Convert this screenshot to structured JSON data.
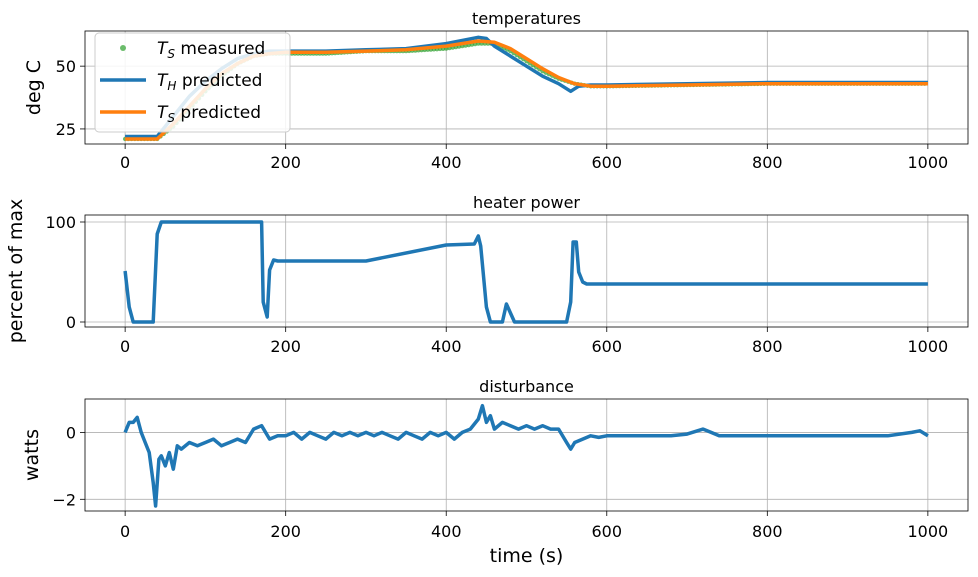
{
  "chart_data": [
    {
      "type": "line",
      "title": "temperatures",
      "ylabel": "deg C",
      "xlabel": "",
      "xlim": [
        -50,
        1050
      ],
      "ylim": [
        19,
        64
      ],
      "xticks": [
        0,
        200,
        400,
        600,
        800,
        1000
      ],
      "yticks": [
        25,
        50
      ],
      "xtick_labels": [
        "0",
        "200",
        "400",
        "600",
        "800",
        "1000"
      ],
      "ytick_labels": [
        "25",
        "50"
      ],
      "grid": true,
      "legend": "upper-left",
      "legend_entries": [
        {
          "label_main": "T",
          "label_sub": "S",
          "label_rest": " measured",
          "color": "#2ca02c",
          "marker": "dot"
        },
        {
          "label_main": "T",
          "label_sub": "H",
          "label_rest": " predicted",
          "color": "#1f77b4",
          "marker": "line"
        },
        {
          "label_main": "T",
          "label_sub": "S",
          "label_rest": " predicted",
          "color": "#ff7f0e",
          "marker": "line"
        }
      ],
      "series": [
        {
          "color": "#2ca02c",
          "kind": "scatter",
          "x": [
            0,
            20,
            40,
            60,
            80,
            100,
            120,
            140,
            160,
            180,
            200,
            250,
            300,
            350,
            400,
            440,
            460,
            480,
            500,
            520,
            540,
            560,
            580,
            600,
            700,
            800,
            900,
            1000
          ],
          "y": [
            21,
            21,
            21,
            26,
            33,
            40,
            46,
            51,
            54,
            55,
            55,
            55,
            56,
            56,
            57,
            59,
            59,
            56,
            52,
            48,
            45,
            43,
            42,
            42,
            42.5,
            43,
            43,
            43
          ]
        },
        {
          "color": "#1f77b4",
          "kind": "line",
          "x": [
            0,
            20,
            40,
            60,
            80,
            100,
            120,
            140,
            160,
            180,
            200,
            250,
            300,
            350,
            400,
            440,
            450,
            460,
            480,
            500,
            520,
            540,
            555,
            565,
            580,
            600,
            700,
            800,
            900,
            1000
          ],
          "y": [
            22,
            22,
            22,
            30,
            38,
            44,
            49,
            53,
            55,
            56,
            56,
            56,
            56.5,
            57,
            59,
            61.5,
            61,
            58,
            54,
            50,
            46,
            43,
            40,
            42,
            42.5,
            42.5,
            43,
            43.5,
            43.5,
            43.5
          ]
        },
        {
          "color": "#ff7f0e",
          "kind": "line",
          "x": [
            0,
            20,
            40,
            60,
            80,
            100,
            120,
            140,
            160,
            180,
            200,
            250,
            300,
            350,
            400,
            440,
            460,
            480,
            500,
            520,
            540,
            560,
            580,
            600,
            700,
            800,
            900,
            1000
          ],
          "y": [
            21,
            21,
            21,
            27,
            34,
            41,
            47,
            51,
            54,
            55,
            55.5,
            55.5,
            56,
            56.5,
            58,
            60,
            59.5,
            57,
            53,
            49,
            45.5,
            43,
            42,
            42,
            42.5,
            43,
            43,
            43
          ]
        }
      ]
    },
    {
      "type": "line",
      "title": "heater power",
      "ylabel": "percent of max",
      "xlabel": "",
      "xlim": [
        -50,
        1050
      ],
      "ylim": [
        -5,
        107
      ],
      "xticks": [
        0,
        200,
        400,
        600,
        800,
        1000
      ],
      "yticks": [
        0,
        100
      ],
      "xtick_labels": [
        "0",
        "200",
        "400",
        "600",
        "800",
        "1000"
      ],
      "ytick_labels": [
        "0",
        "100"
      ],
      "grid": true,
      "series": [
        {
          "color": "#1f77b4",
          "x": [
            0,
            5,
            10,
            35,
            40,
            45,
            170,
            172,
            177,
            180,
            185,
            190,
            300,
            400,
            435,
            440,
            443,
            450,
            455,
            470,
            475,
            485,
            550,
            555,
            558,
            562,
            565,
            570,
            575,
            1000
          ],
          "y": [
            51,
            15,
            0,
            0,
            88,
            100,
            100,
            20,
            5,
            52,
            62,
            61,
            61,
            77,
            78,
            86,
            76,
            15,
            0,
            0,
            18,
            0,
            0,
            20,
            80,
            80,
            50,
            40,
            38,
            38
          ]
        }
      ]
    },
    {
      "type": "line",
      "title": "disturbance",
      "ylabel": "watts",
      "xlabel": "time (s)",
      "xlim": [
        -50,
        1050
      ],
      "ylim": [
        -2.35,
        1.0
      ],
      "xticks": [
        0,
        200,
        400,
        600,
        800,
        1000
      ],
      "yticks": [
        -2,
        0
      ],
      "xtick_labels": [
        "0",
        "200",
        "400",
        "600",
        "800",
        "1000"
      ],
      "ytick_labels": [
        "−2",
        "0"
      ],
      "grid": true,
      "series": [
        {
          "color": "#1f77b4",
          "x": [
            0,
            5,
            10,
            15,
            20,
            25,
            30,
            35,
            38,
            42,
            45,
            50,
            55,
            60,
            65,
            70,
            80,
            90,
            100,
            110,
            120,
            130,
            140,
            150,
            160,
            170,
            180,
            190,
            200,
            210,
            220,
            230,
            240,
            250,
            260,
            270,
            280,
            290,
            300,
            310,
            320,
            330,
            340,
            350,
            360,
            370,
            380,
            390,
            400,
            410,
            420,
            430,
            440,
            445,
            450,
            455,
            460,
            470,
            480,
            490,
            500,
            510,
            520,
            530,
            540,
            550,
            555,
            560,
            570,
            580,
            590,
            600,
            620,
            640,
            660,
            680,
            700,
            720,
            730,
            740,
            760,
            780,
            800,
            850,
            900,
            950,
            980,
            990,
            1000
          ],
          "y": [
            0,
            0.3,
            0.3,
            0.45,
            0,
            -0.3,
            -0.6,
            -1.5,
            -2.2,
            -0.8,
            -0.7,
            -1.0,
            -0.6,
            -1.1,
            -0.4,
            -0.5,
            -0.3,
            -0.4,
            -0.3,
            -0.2,
            -0.4,
            -0.3,
            -0.2,
            -0.3,
            0.1,
            0.2,
            -0.2,
            -0.1,
            -0.1,
            0,
            -0.2,
            0,
            -0.1,
            -0.2,
            0,
            -0.1,
            0,
            -0.1,
            0,
            -0.1,
            0,
            -0.1,
            -0.2,
            0,
            -0.1,
            -0.2,
            0,
            -0.1,
            0,
            -0.2,
            0,
            0.1,
            0.4,
            0.8,
            0.3,
            0.5,
            0.1,
            0.3,
            0.2,
            0.1,
            0.2,
            0.1,
            0.2,
            0.1,
            0.1,
            -0.3,
            -0.5,
            -0.3,
            -0.2,
            -0.1,
            -0.15,
            -0.1,
            -0.1,
            -0.1,
            -0.1,
            -0.1,
            -0.05,
            0.1,
            0,
            -0.1,
            -0.1,
            -0.1,
            -0.1,
            -0.1,
            -0.1,
            -0.1,
            0,
            0.05,
            -0.1
          ]
        }
      ]
    }
  ]
}
